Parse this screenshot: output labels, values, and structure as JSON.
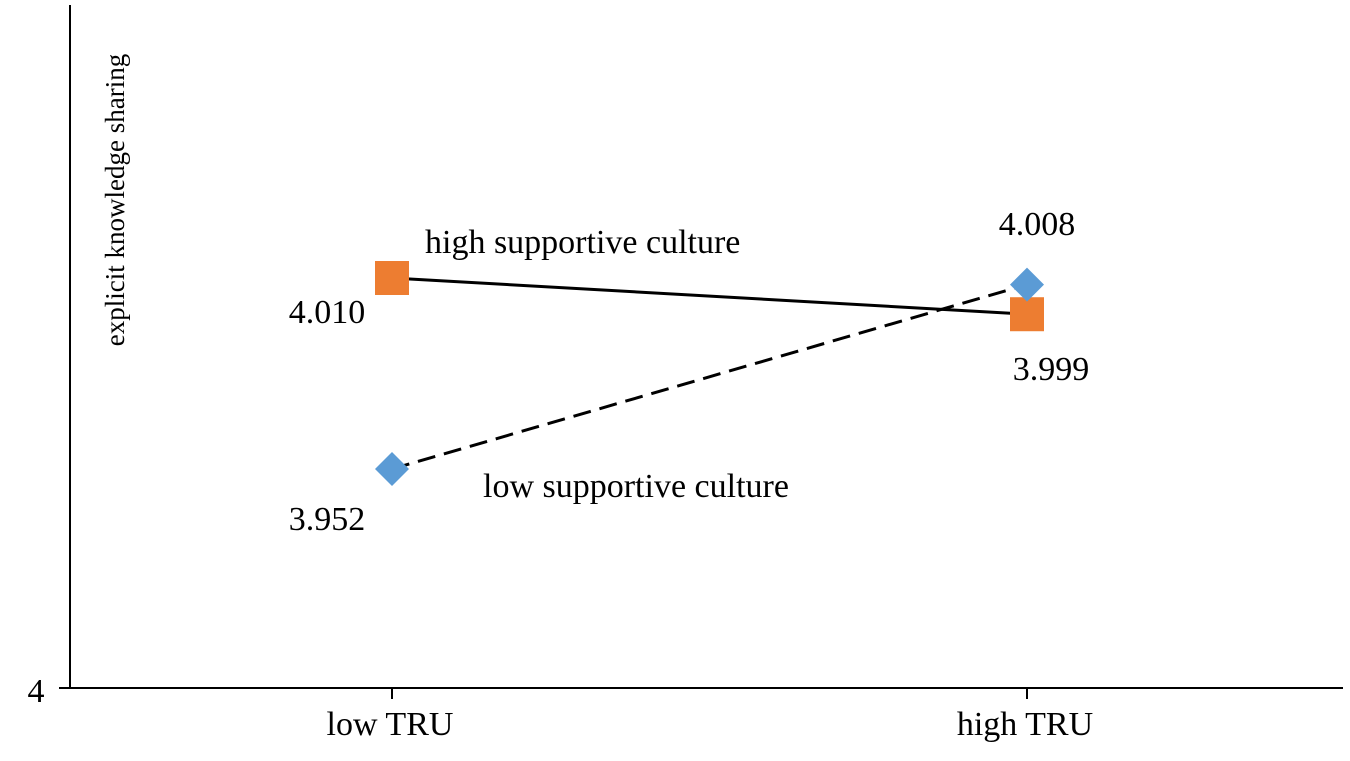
{
  "chart_data": {
    "type": "line",
    "title": "",
    "ylabel": "explicit knowledge sharing",
    "xlabel": "",
    "categories": [
      "low TRU",
      "high TRU"
    ],
    "y_tick_labels": [
      "4"
    ],
    "series": [
      {
        "name": "high supportive culture",
        "values": [
          4.01,
          3.999
        ],
        "value_labels": [
          "4.010",
          "3.999"
        ],
        "line_style": "solid",
        "marker": "square",
        "marker_color": "#ED7D31",
        "line_color": "#000000"
      },
      {
        "name": "low supportive culture",
        "values": [
          3.952,
          4.008
        ],
        "value_labels": [
          "3.952",
          "4.008"
        ],
        "line_style": "dashed",
        "marker": "diamond",
        "marker_color": "#5B9BD5",
        "line_color": "#000000"
      }
    ],
    "grid": false,
    "legend": "none (series labeled inline)"
  }
}
